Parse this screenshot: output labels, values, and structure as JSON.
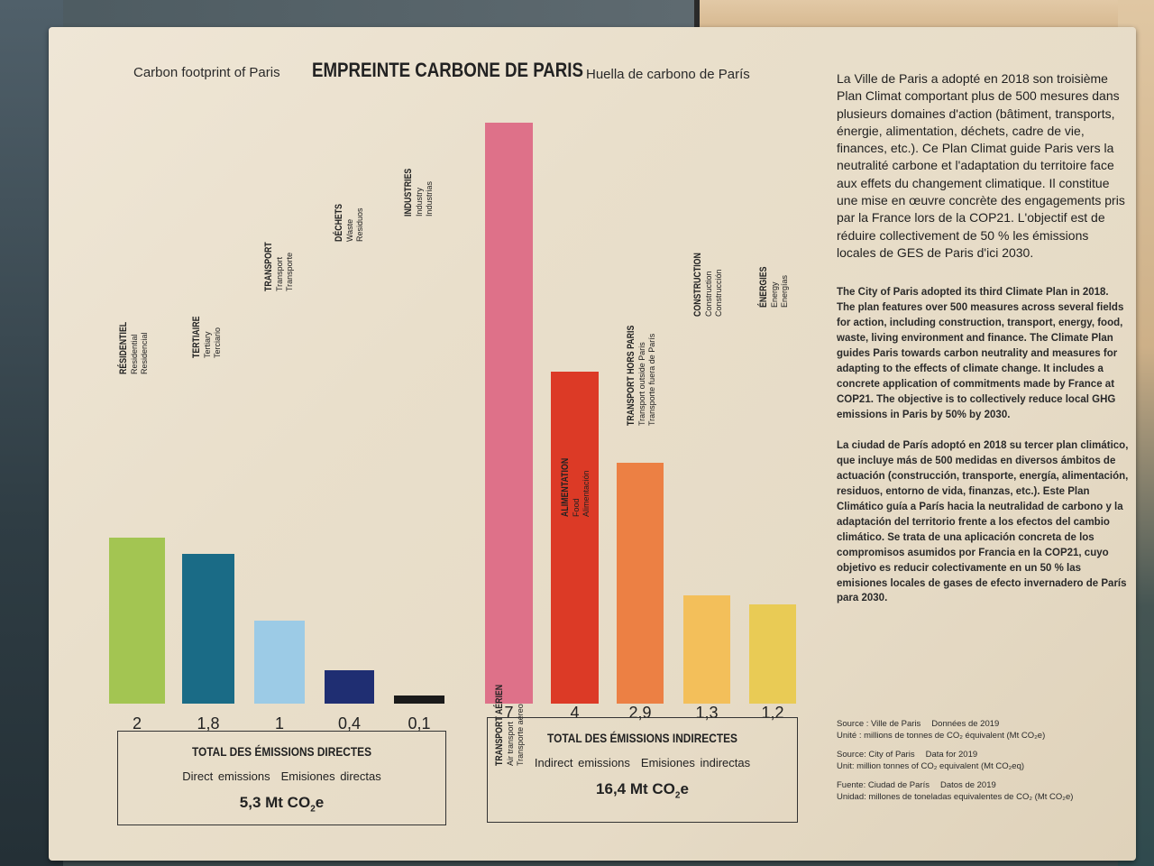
{
  "title": {
    "english": "Carbon footprint of Paris",
    "french": "EMPREINTE CARBONE DE PARIS",
    "spanish": "Huella de carbono de París"
  },
  "chart_data": {
    "type": "bar",
    "categories": [
      "RÉSIDENTIEL",
      "TERTIAIRE",
      "TRANSPORT",
      "DÉCHETS",
      "INDUSTRIES",
      "TRANSPORT AÉRIEN",
      "ALIMENTATION",
      "TRANSPORT HORS PARIS",
      "CONSTRUCTION",
      "ÉNERGIES"
    ],
    "values": [
      2,
      1.8,
      1,
      0.4,
      0.1,
      7,
      4,
      2.9,
      1.3,
      1.2
    ],
    "value_labels": [
      "2",
      "1,8",
      "1",
      "0,4",
      "0,1",
      "7",
      "4",
      "2,9",
      "1,3",
      "1,2"
    ],
    "translations": [
      [
        "Residential",
        "Residencial"
      ],
      [
        "Tertiary",
        "Terciario"
      ],
      [
        "Transport",
        "Transporte"
      ],
      [
        "Waste",
        "Residuos"
      ],
      [
        "Industry",
        "Industrias"
      ],
      [
        "Air transport",
        "Transporte aéreo"
      ],
      [
        "Food",
        "Alimentación"
      ],
      [
        "Transport outside Paris",
        "Transporte fuera de París"
      ],
      [
        "Construction",
        "Construcción"
      ],
      [
        "Energy",
        "Energías"
      ]
    ],
    "colors": [
      "#a3c552",
      "#1a6b86",
      "#9ccbe6",
      "#1f2e72",
      "#1a1a1a",
      "#de7189",
      "#dc3a26",
      "#ec8044",
      "#f3bf5a",
      "#e9cb55"
    ],
    "groups": [
      {
        "name": "TOTAL DES ÉMISSIONS DIRECTES",
        "categories": [
          "RÉSIDENTIEL",
          "TERTIAIRE",
          "TRANSPORT",
          "DÉCHETS",
          "INDUSTRIES"
        ]
      },
      {
        "name": "TOTAL DES ÉMISSIONS INDIRECTES",
        "categories": [
          "TRANSPORT AÉRIEN",
          "ALIMENTATION",
          "TRANSPORT HORS PARIS",
          "CONSTRUCTION",
          "ÉNERGIES"
        ]
      }
    ],
    "ylim": [
      0,
      7
    ],
    "grid": false,
    "legend": "none"
  },
  "direct": {
    "title": "TOTAL DES ÉMISSIONS DIRECTES",
    "sub_en": "Direct emissions",
    "sub_es": "Emisiones directas",
    "total_value": "5,3 Mt CO",
    "total_sub": "2",
    "total_tail": "e"
  },
  "indirect": {
    "title": "TOTAL DES ÉMISSIONS INDIRECTES",
    "sub_en": "Indirect emissions",
    "sub_es": "Emisiones indirectas",
    "total_value": "16,4 Mt CO",
    "total_sub": "2",
    "total_tail": "e"
  },
  "text": {
    "french": "La Ville de Paris a adopté en 2018 son troisième Plan Climat comportant plus de 500 mesures dans plusieurs domaines d'action (bâtiment, transports, énergie, alimentation, déchets, cadre de vie, finances, etc.). Ce Plan Climat guide Paris vers la neutralité carbone et l'adaptation du territoire face aux effets du changement climatique. Il constitue une mise en œuvre concrète des engagements pris par la France lors de la COP21. L'objectif est de réduire collectivement de 50 % les émissions locales de GES de Paris d'ici 2030.",
    "english": "The City of Paris adopted its third Climate Plan in 2018. The plan features over 500 measures across several fields for action, including construction, transport, energy, food, waste, living environment and finance. The Climate Plan guides Paris towards carbon neutrality and measures for adapting to the effects of climate change. It includes a concrete application of commitments made by France at COP21. The objective is to collectively reduce local GHG emissions in Paris by 50% by 2030.",
    "spanish": "La ciudad de París adoptó en 2018 su tercer plan climático, que incluye más de 500 medidas en diversos ámbitos de actuación (construcción, transporte, energía, alimentación, residuos, entorno de vida, finanzas, etc.). Este Plan Climático guía a París hacia la neutralidad de carbono y la adaptación del territorio frente a los efectos del cambio climático. Se trata de una aplicación concreta de los compromisos asumidos por Francia en la COP21, cuyo objetivo es reducir colectivamente en un 50 % las emisiones locales de gases de efecto invernadero de París para 2030."
  },
  "sources": {
    "fr_source": "Source : Ville de Paris",
    "fr_data": "Données de 2019",
    "fr_unit": "Unité : millions de tonnes de CO₂ équivalent (Mt CO₂e)",
    "en_source": "Source: City of Paris",
    "en_data": "Data for 2019",
    "en_unit": "Unit: million tonnes of CO₂ equivalent (Mt CO₂eq)",
    "es_source": "Fuente: Ciudad de París",
    "es_data": "Datos de 2019",
    "es_unit": "Unidad: millones de toneladas equivalentes de CO₂ (Mt CO₂e)"
  }
}
